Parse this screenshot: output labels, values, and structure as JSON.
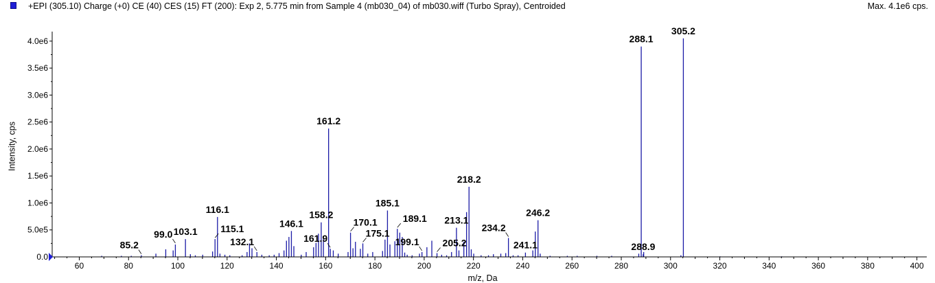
{
  "header": {
    "title": "+EPI (305.10) Charge (+0) CE (40) CES (15) FT (200): Exp 2, 5.775 min from Sample 4 (mb030_04) of mb030.wiff (Turbo Spray), Centroided",
    "max_label": "Max. 4.1e6 cps."
  },
  "colors": {
    "series": "#1a1aa6",
    "axis": "#000000",
    "legend_swatch": "#1f1fd6"
  },
  "chart_data": {
    "type": "bar",
    "xlabel": "m/z, Da",
    "ylabel": "Intensity, cps",
    "xlim": [
      49,
      404
    ],
    "ylim": [
      0,
      4100000
    ],
    "x_ticks": [
      60,
      80,
      100,
      120,
      140,
      160,
      180,
      200,
      220,
      240,
      260,
      280,
      300,
      320,
      340,
      360,
      380,
      400
    ],
    "x_tick_labels": [
      "60",
      "80",
      "100",
      "120",
      "140",
      "160",
      "180",
      "200",
      "220",
      "240",
      "260",
      "280",
      "300",
      "320",
      "340",
      "360",
      "380",
      "400"
    ],
    "y_ticks": [
      0,
      500000,
      1000000,
      1500000,
      2000000,
      2500000,
      3000000,
      3500000,
      4000000
    ],
    "y_tick_labels": [
      "0.0",
      "5.0e5",
      "1.0e6",
      "1.5e6",
      "2.0e6",
      "2.5e6",
      "3.0e6",
      "3.5e6",
      "4.0e6"
    ],
    "grid": false,
    "peaks": [
      {
        "mz": 305.2,
        "intensity": 4050000
      },
      {
        "mz": 288.1,
        "intensity": 3900000
      },
      {
        "mz": 161.2,
        "intensity": 2380000
      },
      {
        "mz": 218.2,
        "intensity": 1300000
      },
      {
        "mz": 217.2,
        "intensity": 830000
      },
      {
        "mz": 216.1,
        "intensity": 280000
      },
      {
        "mz": 185.1,
        "intensity": 860000
      },
      {
        "mz": 116.1,
        "intensity": 740000
      },
      {
        "mz": 115.1,
        "intensity": 330000
      },
      {
        "mz": 114.1,
        "intensity": 100000
      },
      {
        "mz": 246.2,
        "intensity": 680000
      },
      {
        "mz": 245.1,
        "intensity": 470000
      },
      {
        "mz": 244.1,
        "intensity": 120000
      },
      {
        "mz": 158.2,
        "intensity": 640000
      },
      {
        "mz": 157.1,
        "intensity": 430000
      },
      {
        "mz": 156.1,
        "intensity": 260000
      },
      {
        "mz": 159.1,
        "intensity": 330000
      },
      {
        "mz": 213.1,
        "intensity": 540000
      },
      {
        "mz": 214.1,
        "intensity": 120000
      },
      {
        "mz": 189.1,
        "intensity": 520000
      },
      {
        "mz": 190.1,
        "intensity": 450000
      },
      {
        "mz": 191.1,
        "intensity": 370000
      },
      {
        "mz": 188.1,
        "intensity": 290000
      },
      {
        "mz": 186.1,
        "intensity": 230000
      },
      {
        "mz": 170.1,
        "intensity": 450000
      },
      {
        "mz": 171.1,
        "intensity": 160000
      },
      {
        "mz": 172.1,
        "intensity": 280000
      },
      {
        "mz": 146.1,
        "intensity": 480000
      },
      {
        "mz": 145.1,
        "intensity": 370000
      },
      {
        "mz": 144.1,
        "intensity": 300000
      },
      {
        "mz": 147.1,
        "intensity": 200000
      },
      {
        "mz": 234.2,
        "intensity": 350000
      },
      {
        "mz": 233.1,
        "intensity": 70000
      },
      {
        "mz": 103.1,
        "intensity": 330000
      },
      {
        "mz": 99.0,
        "intensity": 230000
      },
      {
        "mz": 98.1,
        "intensity": 120000
      },
      {
        "mz": 91.1,
        "intensity": 60000
      },
      {
        "mz": 95.1,
        "intensity": 140000
      },
      {
        "mz": 175.1,
        "intensity": 250000
      },
      {
        "mz": 174.1,
        "intensity": 150000
      },
      {
        "mz": 129.1,
        "intensity": 250000
      },
      {
        "mz": 130.1,
        "intensity": 160000
      },
      {
        "mz": 128.1,
        "intensity": 90000
      },
      {
        "mz": 132.1,
        "intensity": 90000
      },
      {
        "mz": 203.1,
        "intensity": 300000
      },
      {
        "mz": 201.1,
        "intensity": 180000
      },
      {
        "mz": 199.1,
        "intensity": 90000
      },
      {
        "mz": 161.9,
        "intensity": 150000
      },
      {
        "mz": 163.1,
        "intensity": 120000
      },
      {
        "mz": 165.1,
        "intensity": 60000
      },
      {
        "mz": 155.1,
        "intensity": 180000
      },
      {
        "mz": 152.1,
        "intensity": 90000
      },
      {
        "mz": 143.1,
        "intensity": 120000
      },
      {
        "mz": 141.1,
        "intensity": 70000
      },
      {
        "mz": 169.1,
        "intensity": 90000
      },
      {
        "mz": 177.1,
        "intensity": 60000
      },
      {
        "mz": 179.1,
        "intensity": 90000
      },
      {
        "mz": 183.1,
        "intensity": 110000
      },
      {
        "mz": 184.1,
        "intensity": 320000
      },
      {
        "mz": 192.1,
        "intensity": 80000
      },
      {
        "mz": 198.1,
        "intensity": 60000
      },
      {
        "mz": 205.2,
        "intensity": 70000
      },
      {
        "mz": 211.1,
        "intensity": 90000
      },
      {
        "mz": 219.1,
        "intensity": 140000
      },
      {
        "mz": 220.1,
        "intensity": 60000
      },
      {
        "mz": 228.1,
        "intensity": 50000
      },
      {
        "mz": 231.1,
        "intensity": 60000
      },
      {
        "mz": 241.1,
        "intensity": 80000
      },
      {
        "mz": 247.1,
        "intensity": 60000
      },
      {
        "mz": 287.1,
        "intensity": 60000
      },
      {
        "mz": 288.9,
        "intensity": 50000
      },
      {
        "mz": 289.1,
        "intensity": 90000
      },
      {
        "mz": 304.2,
        "intensity": 30000
      },
      {
        "mz": 85.2,
        "intensity": 30000
      },
      {
        "mz": 81.1,
        "intensity": 20000
      },
      {
        "mz": 77.1,
        "intensity": 20000
      },
      {
        "mz": 69.1,
        "intensity": 20000
      },
      {
        "mz": 105.1,
        "intensity": 50000
      },
      {
        "mz": 107.1,
        "intensity": 30000
      },
      {
        "mz": 110.1,
        "intensity": 40000
      },
      {
        "mz": 117.1,
        "intensity": 60000
      },
      {
        "mz": 119.1,
        "intensity": 40000
      },
      {
        "mz": 121.1,
        "intensity": 30000
      },
      {
        "mz": 126.1,
        "intensity": 30000
      },
      {
        "mz": 134.1,
        "intensity": 40000
      },
      {
        "mz": 137.1,
        "intensity": 30000
      },
      {
        "mz": 139.1,
        "intensity": 40000
      },
      {
        "mz": 150.1,
        "intensity": 40000
      },
      {
        "mz": 193.1,
        "intensity": 40000
      },
      {
        "mz": 195.1,
        "intensity": 30000
      },
      {
        "mz": 207.1,
        "intensity": 40000
      },
      {
        "mz": 209.1,
        "intensity": 30000
      },
      {
        "mz": 223.1,
        "intensity": 30000
      },
      {
        "mz": 226.1,
        "intensity": 30000
      },
      {
        "mz": 236.1,
        "intensity": 30000
      },
      {
        "mz": 238.1,
        "intensity": 30000
      },
      {
        "mz": 251.1,
        "intensity": 20000
      },
      {
        "mz": 258.1,
        "intensity": 20000
      },
      {
        "mz": 262.1,
        "intensity": 20000
      },
      {
        "mz": 270.1,
        "intensity": 20000
      },
      {
        "mz": 276.1,
        "intensity": 20000
      },
      {
        "mz": 320.1,
        "intensity": 10000
      },
      {
        "mz": 345.1,
        "intensity": 10000
      }
    ],
    "annotations": [
      {
        "text": "305.2",
        "mz": 305.2,
        "intensity": 4050000,
        "leader": false
      },
      {
        "text": "288.1",
        "mz": 288.1,
        "intensity": 3900000,
        "leader": false
      },
      {
        "text": "161.2",
        "mz": 161.2,
        "intensity": 2380000,
        "leader": false
      },
      {
        "text": "218.2",
        "mz": 218.2,
        "intensity": 1300000,
        "leader": false
      },
      {
        "text": "185.1",
        "mz": 185.1,
        "intensity": 860000,
        "leader": false
      },
      {
        "text": "116.1",
        "mz": 116.1,
        "intensity": 740000,
        "leader": false
      },
      {
        "text": "246.2",
        "mz": 246.2,
        "intensity": 680000,
        "leader": false
      },
      {
        "text": "158.2",
        "mz": 158.2,
        "intensity": 640000,
        "leader": false
      },
      {
        "text": "146.1",
        "mz": 146.1,
        "intensity": 480000,
        "leader": false
      },
      {
        "text": "213.1",
        "mz": 213.1,
        "intensity": 540000,
        "leader": false
      },
      {
        "text": "189.1",
        "mz": 189.1,
        "intensity": 520000,
        "leader": true
      },
      {
        "text": "170.1",
        "mz": 170.1,
        "intensity": 450000,
        "leader": true
      },
      {
        "text": "115.1",
        "mz": 115.1,
        "intensity": 330000,
        "leader": true
      },
      {
        "text": "103.1",
        "mz": 103.1,
        "intensity": 330000,
        "leader": false
      },
      {
        "text": "99.0",
        "mz": 99.0,
        "intensity": 230000,
        "leader": true
      },
      {
        "text": "234.2",
        "mz": 234.2,
        "intensity": 350000,
        "leader": true
      },
      {
        "text": "175.1",
        "mz": 175.1,
        "intensity": 250000,
        "leader": true
      },
      {
        "text": "132.1",
        "mz": 132.1,
        "intensity": 90000,
        "leader": true
      },
      {
        "text": "161.9",
        "mz": 161.9,
        "intensity": 150000,
        "leader": true
      },
      {
        "text": "199.1",
        "mz": 199.1,
        "intensity": 90000,
        "leader": true
      },
      {
        "text": "205.2",
        "mz": 205.2,
        "intensity": 70000,
        "leader": true
      },
      {
        "text": "241.1",
        "mz": 241.1,
        "intensity": 80000,
        "leader": false
      },
      {
        "text": "85.2",
        "mz": 85.2,
        "intensity": 30000,
        "leader": true
      },
      {
        "text": "288.9",
        "mz": 288.9,
        "intensity": 50000,
        "leader": false
      }
    ]
  }
}
